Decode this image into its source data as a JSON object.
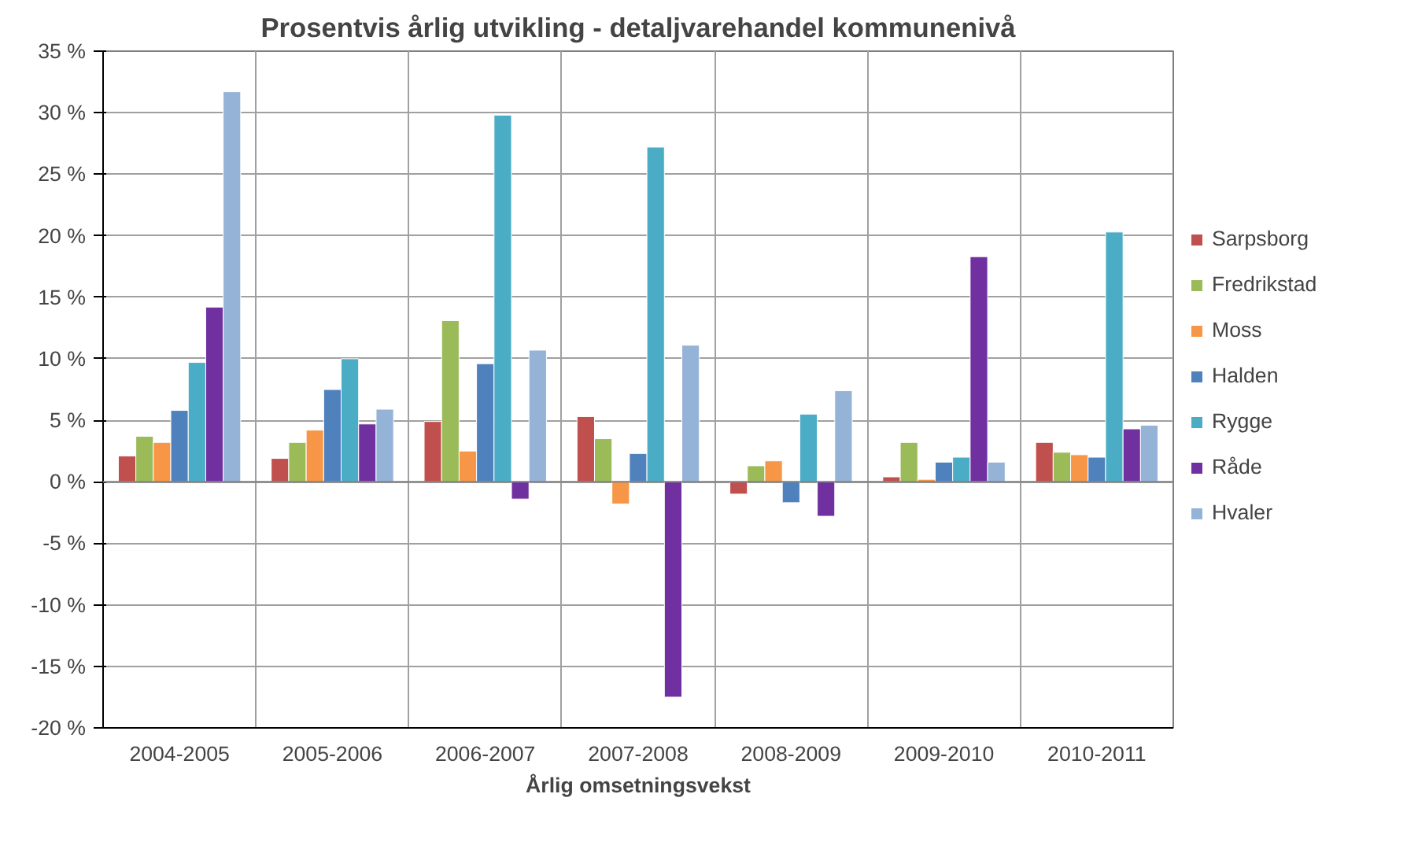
{
  "chart_data": {
    "type": "bar",
    "title": "Prosentvis årlig utvikling - detaljvarehandel kommunenivå",
    "xlabel": "Årlig omsetningsvekst",
    "categories": [
      "2004-2005",
      "2005-2006",
      "2006-2007",
      "2007-2008",
      "2008-2009",
      "2009-2010",
      "2010-2011"
    ],
    "series": [
      {
        "name": "Sarpsborg",
        "color": "#c0504d",
        "values": [
          2.1,
          1.9,
          4.9,
          5.3,
          -1.0,
          0.4,
          3.2
        ]
      },
      {
        "name": "Fredrikstad",
        "color": "#9bbb59",
        "values": [
          3.7,
          3.2,
          13.1,
          3.5,
          1.3,
          3.2,
          2.4
        ]
      },
      {
        "name": "Moss",
        "color": "#f79646",
        "values": [
          3.2,
          4.2,
          2.5,
          -1.8,
          1.7,
          0.2,
          2.2
        ]
      },
      {
        "name": "Halden",
        "color": "#4f81bd",
        "values": [
          5.8,
          7.5,
          9.6,
          2.3,
          -1.7,
          1.6,
          2.0
        ]
      },
      {
        "name": "Rygge",
        "color": "#4bacc6",
        "values": [
          9.7,
          10.0,
          29.8,
          27.2,
          5.5,
          2.0,
          20.3
        ]
      },
      {
        "name": "Råde",
        "color": "#7030a0",
        "values": [
          14.2,
          4.7,
          -1.4,
          -17.5,
          -2.8,
          18.3,
          4.3
        ]
      },
      {
        "name": "Hvaler",
        "color": "#95b3d7",
        "values": [
          31.7,
          5.9,
          10.7,
          11.1,
          7.4,
          1.6,
          4.6
        ]
      }
    ],
    "ylim": [
      -20,
      35
    ],
    "yticks": [
      {
        "value": -20,
        "label": "-20 %"
      },
      {
        "value": -15,
        "label": "-15 %"
      },
      {
        "value": -10,
        "label": "-10 %"
      },
      {
        "value": -5,
        "label": "-5 %"
      },
      {
        "value": 0,
        "label": "0 %"
      },
      {
        "value": 5,
        "label": "5 %"
      },
      {
        "value": 10,
        "label": "10 %"
      },
      {
        "value": 15,
        "label": "15 %"
      },
      {
        "value": 20,
        "label": "20 %"
      },
      {
        "value": 25,
        "label": "25 %"
      },
      {
        "value": 30,
        "label": "30 %"
      },
      {
        "value": 35,
        "label": "35 %"
      }
    ],
    "grid": true,
    "legend": "right"
  }
}
